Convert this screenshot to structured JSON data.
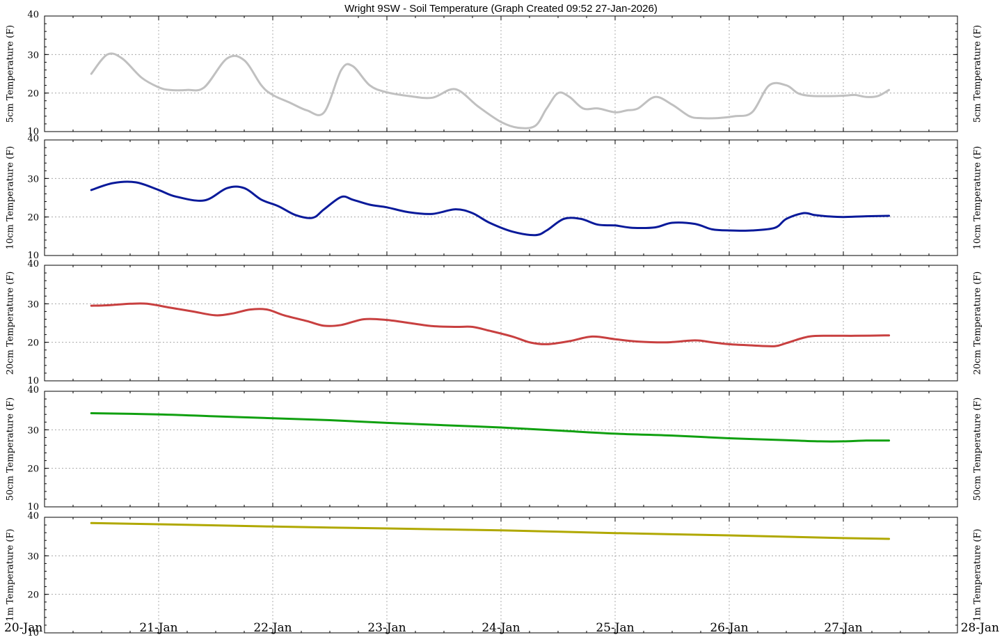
{
  "title": "Wright 9SW - Soil Temperature (Graph Created 09:52 27-Jan-2026)",
  "colors": {
    "series_5cm": "#c0c0c0",
    "series_10cm": "#0a1a9a",
    "series_20cm": "#c84040",
    "series_50cm": "#10a010",
    "series_1m": "#b0a800",
    "grid": "#9a9a9a",
    "frame": "#000000"
  },
  "chart_data": [
    {
      "type": "line",
      "ylabel": "5cm Temperature (F)",
      "ylim": [
        10,
        40
      ],
      "yticks": [
        10,
        20,
        30,
        40
      ],
      "grid": true,
      "series": [
        {
          "color": "#c0c0c0",
          "x": [
            0.41,
            0.55,
            0.68,
            0.85,
            1.0,
            1.1,
            1.25,
            1.4,
            1.6,
            1.75,
            1.9,
            2.0,
            2.15,
            2.3,
            2.45,
            2.6,
            2.7,
            2.85,
            3.0,
            3.2,
            3.4,
            3.6,
            3.8,
            4.0,
            4.15,
            4.3,
            4.4,
            4.5,
            4.6,
            4.72,
            4.85,
            5.0,
            5.1,
            5.2,
            5.35,
            5.5,
            5.65,
            5.75,
            5.9,
            6.05,
            6.2,
            6.35,
            6.5,
            6.6,
            6.7,
            6.85,
            7.0,
            7.1,
            7.2,
            7.3,
            7.4
          ],
          "y": [
            25,
            30,
            29,
            24,
            21.5,
            20.8,
            20.8,
            21.5,
            29,
            28.5,
            22,
            19.5,
            17.5,
            15.5,
            15,
            26,
            27,
            22,
            20.2,
            19.2,
            18.8,
            21,
            16.5,
            12.5,
            11,
            11.5,
            16,
            20,
            19,
            16,
            16,
            15,
            15.5,
            16,
            19,
            17,
            14,
            13.5,
            13.5,
            14,
            15,
            22,
            22,
            20,
            19.3,
            19.2,
            19.3,
            19.5,
            19,
            19.2,
            20.8
          ]
        }
      ]
    },
    {
      "type": "line",
      "ylabel": "10cm Temperature (F)",
      "ylim": [
        10,
        40
      ],
      "yticks": [
        10,
        20,
        30,
        40
      ],
      "grid": true,
      "series": [
        {
          "color": "#0a1a9a",
          "x": [
            0.41,
            0.6,
            0.8,
            1.0,
            1.15,
            1.4,
            1.6,
            1.75,
            1.9,
            2.05,
            2.2,
            2.35,
            2.45,
            2.6,
            2.7,
            2.85,
            3.0,
            3.2,
            3.4,
            3.6,
            3.75,
            3.9,
            4.1,
            4.3,
            4.4,
            4.55,
            4.7,
            4.85,
            5.0,
            5.15,
            5.35,
            5.5,
            5.7,
            5.85,
            6.0,
            6.2,
            6.4,
            6.5,
            6.65,
            6.75,
            6.85,
            7.0,
            7.2,
            7.4
          ],
          "y": [
            27,
            28.8,
            29,
            27,
            25.3,
            24.3,
            27.5,
            27.5,
            24.5,
            22.8,
            20.5,
            19.8,
            22,
            25.2,
            24.5,
            23.2,
            22.5,
            21.2,
            20.8,
            22,
            21,
            18.5,
            16.2,
            15.3,
            16.5,
            19.5,
            19.5,
            18,
            17.8,
            17.2,
            17.3,
            18.5,
            18.2,
            16.8,
            16.5,
            16.5,
            17.2,
            19.5,
            21,
            20.5,
            20.2,
            20,
            20.2,
            20.3
          ]
        }
      ]
    },
    {
      "type": "line",
      "ylabel": "20cm Temperature (F)",
      "ylim": [
        10,
        40
      ],
      "yticks": [
        10,
        20,
        30,
        40
      ],
      "grid": true,
      "series": [
        {
          "color": "#c84040",
          "x": [
            0.41,
            0.55,
            0.75,
            0.9,
            1.1,
            1.3,
            1.5,
            1.65,
            1.8,
            1.95,
            2.1,
            2.3,
            2.45,
            2.6,
            2.8,
            3.0,
            3.2,
            3.4,
            3.6,
            3.75,
            3.9,
            4.1,
            4.25,
            4.4,
            4.6,
            4.8,
            5.0,
            5.2,
            5.45,
            5.7,
            5.85,
            6.0,
            6.2,
            6.4,
            6.5,
            6.7,
            6.9,
            7.1,
            7.4
          ],
          "y": [
            29.5,
            29.6,
            30,
            30,
            29,
            28,
            27,
            27.5,
            28.5,
            28.5,
            27,
            25.5,
            24.3,
            24.5,
            26,
            25.8,
            25,
            24.2,
            24,
            24,
            23,
            21.5,
            20,
            19.5,
            20.3,
            21.5,
            20.8,
            20.2,
            20,
            20.5,
            20,
            19.5,
            19.2,
            19,
            19.8,
            21.5,
            21.7,
            21.7,
            21.8
          ]
        }
      ]
    },
    {
      "type": "line",
      "ylabel": "50cm Temperature (F)",
      "ylim": [
        10,
        40
      ],
      "yticks": [
        10,
        20,
        30,
        40
      ],
      "grid": true,
      "series": [
        {
          "color": "#10a010",
          "x": [
            0.41,
            1.0,
            1.5,
            2.0,
            2.5,
            3.0,
            3.5,
            4.0,
            4.5,
            5.0,
            5.5,
            6.0,
            6.5,
            6.8,
            7.0,
            7.2,
            7.4
          ],
          "y": [
            34.3,
            34,
            33.5,
            33,
            32.5,
            31.8,
            31.2,
            30.6,
            29.8,
            29,
            28.5,
            27.8,
            27.3,
            27,
            27,
            27.2,
            27.2
          ]
        }
      ]
    },
    {
      "type": "line",
      "ylabel": "1m Temperature (F)",
      "ylim": [
        10,
        40
      ],
      "yticks": [
        10,
        20,
        30,
        40
      ],
      "grid": true,
      "series": [
        {
          "color": "#b0a800",
          "x": [
            0.41,
            1.0,
            2.0,
            3.0,
            4.0,
            5.0,
            6.0,
            7.0,
            7.4
          ],
          "y": [
            38.5,
            38.2,
            37.6,
            37.1,
            36.6,
            35.9,
            35.3,
            34.6,
            34.4
          ]
        }
      ]
    }
  ],
  "x_axis": {
    "xlim": [
      0,
      8
    ],
    "tick_values": [
      0,
      1,
      2,
      3,
      4,
      5,
      6,
      7,
      8
    ],
    "tick_labels": [
      "20-Jan",
      "21-Jan",
      "22-Jan",
      "23-Jan",
      "24-Jan",
      "25-Jan",
      "26-Jan",
      "27-Jan",
      "28-Jan"
    ]
  }
}
